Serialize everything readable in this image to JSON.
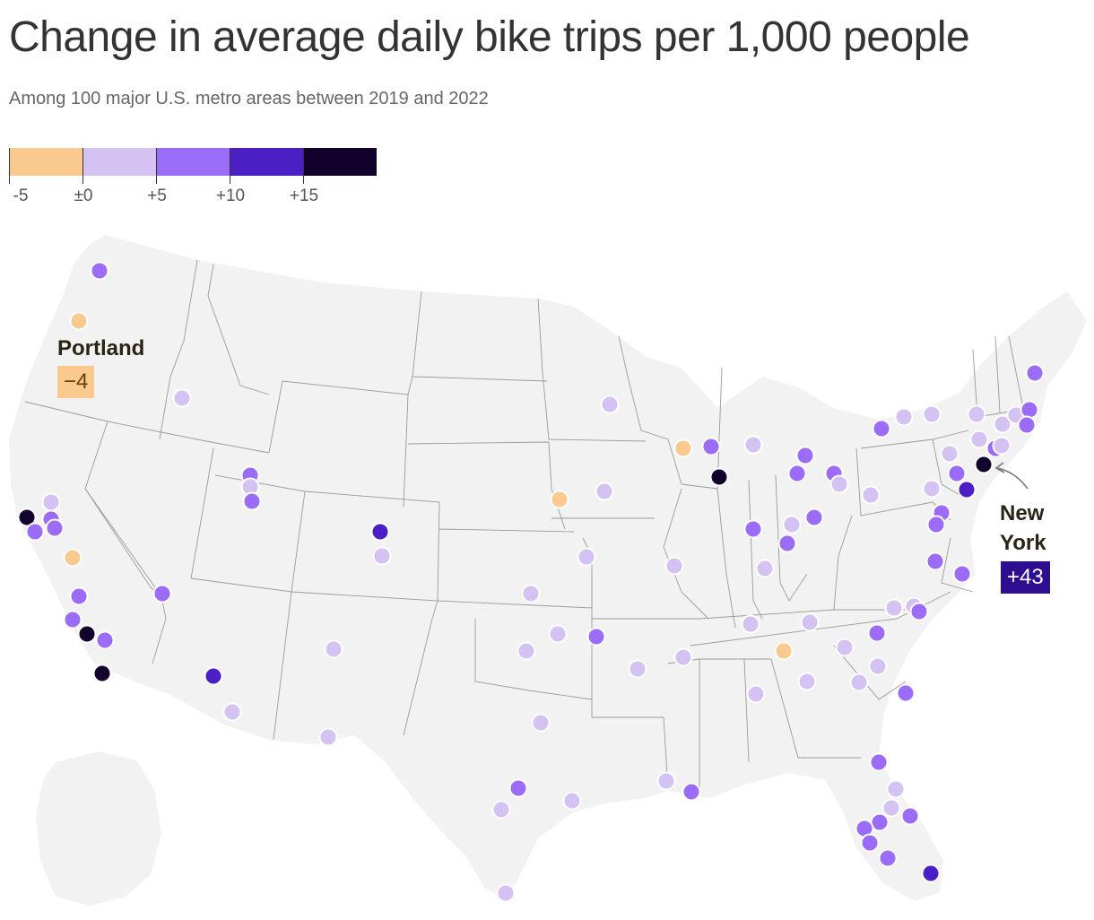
{
  "title": "Change in average daily bike trips per 1,000 people",
  "subtitle": "Among 100 major U.S. metro areas between 2019 and 2022",
  "legend": {
    "bins": [
      {
        "color": "#f9c98d"
      },
      {
        "color": "#d4c2f2"
      },
      {
        "color": "#9b6cf7"
      },
      {
        "color": "#4a1fc3"
      },
      {
        "color": "#12002d"
      }
    ],
    "tick_labels": [
      "-5",
      "±0",
      "+5",
      "+10",
      "+15"
    ]
  },
  "callouts": {
    "portland": {
      "name": "Portland",
      "value": "−4",
      "badge_bg": "#f9c98d",
      "badge_fg": "#6b3f00"
    },
    "new_york": {
      "name_line1": "New",
      "name_line2": "York",
      "value": "+43",
      "badge_bg": "#2e0d8f",
      "badge_fg": "#ffffff"
    }
  },
  "colors": {
    "land": "#f2f2f2",
    "state_border": "#9a9a9a",
    "dot_outline": "#ffffff",
    "arrow": "#777777"
  }
}
